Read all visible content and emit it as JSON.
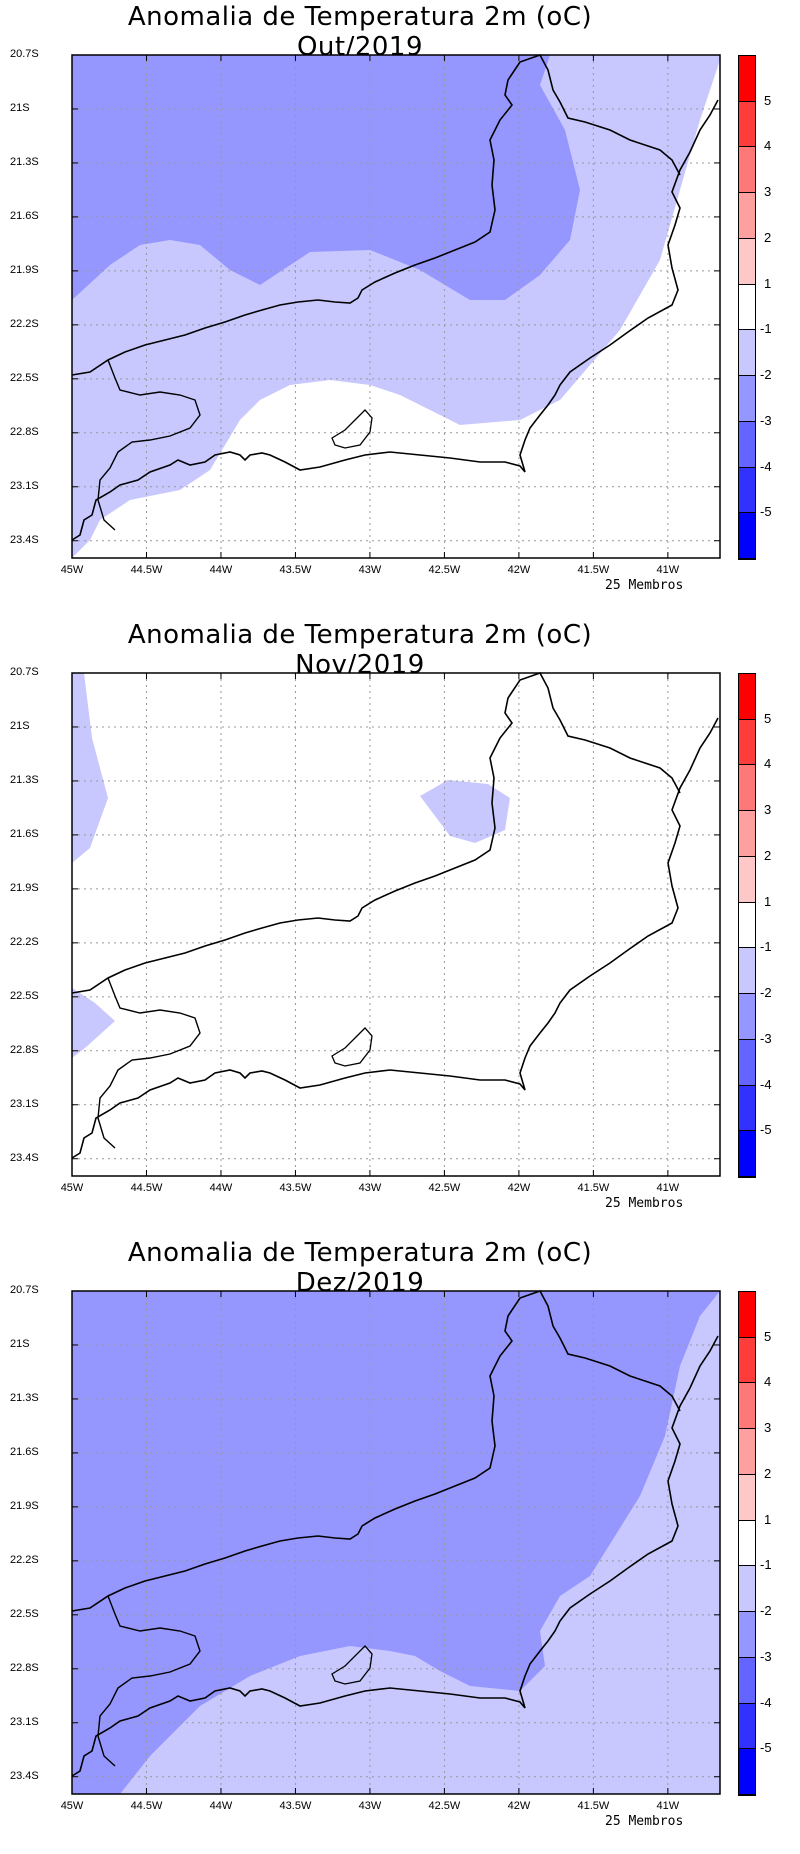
{
  "ensemble_label": "25 Membros",
  "y_ticks": [
    "20.7S",
    "21S",
    "21.3S",
    "21.6S",
    "21.9S",
    "22.2S",
    "22.5S",
    "22.8S",
    "23.1S",
    "23.4S"
  ],
  "x_ticks": [
    "45W",
    "44.5W",
    "44W",
    "43.5W",
    "43W",
    "42.5W",
    "42W",
    "41.5W",
    "41W"
  ],
  "colorbar": {
    "labels": [
      "5",
      "4",
      "3",
      "2",
      "1",
      "-1",
      "-2",
      "-3",
      "-4",
      "-5"
    ],
    "colors": [
      "#ff0000",
      "#ff3c3c",
      "#ff7878",
      "#ffa0a0",
      "#ffc8c8",
      "#ffffff",
      "#c8c8ff",
      "#9696ff",
      "#6464ff",
      "#3232ff",
      "#0000ff"
    ]
  },
  "panels": [
    {
      "title": "Anomalia de Temperatura 2m (oC) Out/2019",
      "month": "Out/2019"
    },
    {
      "title": "Anomalia de Temperatura 2m (oC) Nov/2019",
      "month": "Nov/2019"
    },
    {
      "title": "Anomalia de Temperatura 2m (oC) Dez/2019",
      "month": "Dez/2019"
    }
  ],
  "shading_colors": {
    "light": "#c8c8ff",
    "medium": "#9696ff"
  }
}
